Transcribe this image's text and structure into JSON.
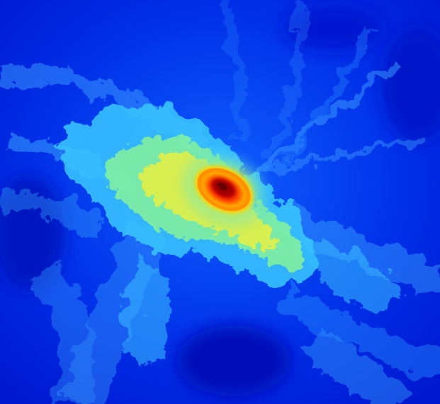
{
  "image": {
    "kind": "density-field-render",
    "colormap": "jet",
    "colors": {
      "background": "#0018d8",
      "deep_blue": "#0010c8",
      "mid_blue": "#0a50ff",
      "light_blue": "#2a8cff",
      "cyan": "#38d4ff",
      "green": "#70f0a0",
      "yellow": "#f0f040",
      "orange": "#ff8a00",
      "red": "#e80000",
      "core": "#8a0000"
    }
  }
}
